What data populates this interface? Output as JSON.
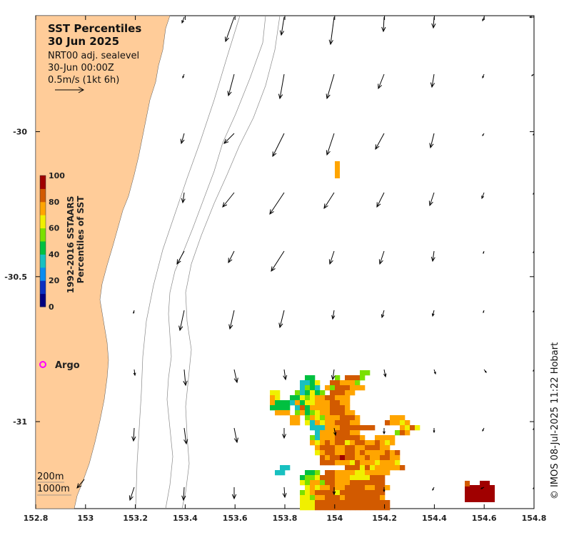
{
  "title": "SST Percentiles",
  "date": "30 Jun 2025",
  "product": "NRT00 adj. sealevel",
  "time": "30-Jun 00:00Z",
  "scale_label": "0.5m/s (1kt 6h)",
  "legend": {
    "argo_label": "Argo",
    "argo_color": "#ff00ff",
    "contour_200": "200m",
    "contour_1000": "1000m"
  },
  "colorbar": {
    "title_line1": "1992-2016 SSTAARS",
    "title_line2": "Percentiles of SST",
    "tick_labels": [
      "100",
      "80",
      "60",
      "40",
      "20",
      "0"
    ],
    "colors": [
      "#000080",
      "#0a2fc0",
      "#0a8cf0",
      "#18c0c0",
      "#00c040",
      "#7ae000",
      "#f0f000",
      "#ffa500",
      "#d25a00",
      "#a00000"
    ]
  },
  "credit": "© IMOS 08-Jul-2025 11:22 Hobart",
  "axes": {
    "lon_min": 152.8,
    "lon_max": 154.8,
    "lat_min": -31.3,
    "lat_max": -29.6,
    "x_tick_labels": [
      "152.8",
      "153",
      "153.2",
      "153.4",
      "153.6",
      "153.8",
      "154",
      "154.2",
      "154.4",
      "154.6",
      "154.8"
    ],
    "y_tick_labels": [
      "-30",
      "-30.5",
      "-31"
    ],
    "y_tick_values": [
      -30,
      -30.5,
      -31
    ]
  },
  "colors": {
    "land": "#ffcc99",
    "sst_orange": "#ffa500",
    "sst_darkorange": "#d25a00",
    "sst_darkred": "#a00000"
  }
}
